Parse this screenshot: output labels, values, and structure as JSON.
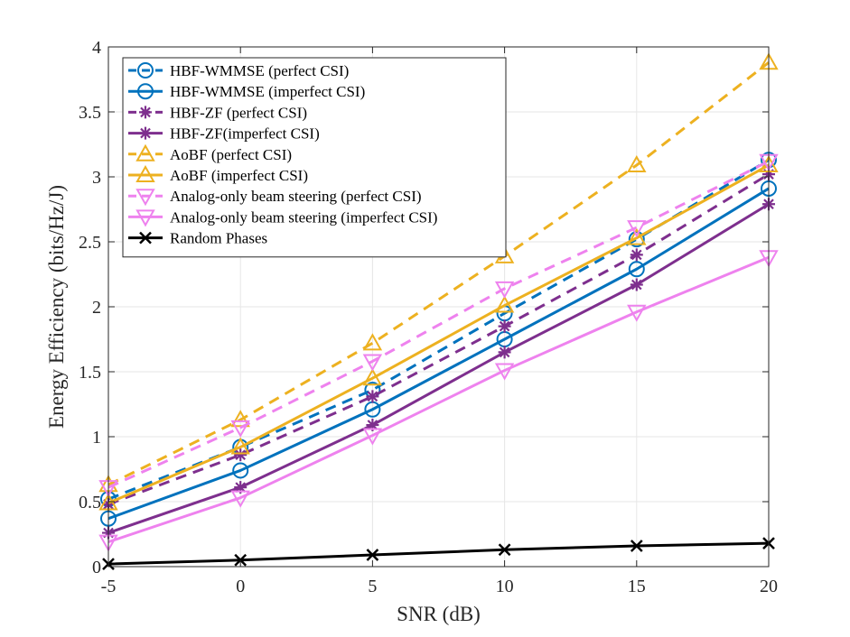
{
  "chart_data": {
    "type": "line",
    "title": "",
    "xlabel": "SNR (dB)",
    "ylabel": "Energy Efficiency (bits/Hz/J)",
    "x": [
      -5,
      0,
      5,
      10,
      15,
      20
    ],
    "xlim": [
      -5,
      20
    ],
    "ylim": [
      0,
      4
    ],
    "xticks": [
      -5,
      0,
      5,
      10,
      15,
      20
    ],
    "yticks": [
      0,
      0.5,
      1,
      1.5,
      2,
      2.5,
      3,
      3.5,
      4
    ],
    "xtick_labels": [
      "-5",
      "0",
      "5",
      "10",
      "15",
      "20"
    ],
    "ytick_labels": [
      "0",
      "0.5",
      "1",
      "1.5",
      "2",
      "2.5",
      "3",
      "3.5",
      "4"
    ],
    "grid": true,
    "legend_position": "top-left",
    "series": [
      {
        "name": "HBF-WMMSE (perfect CSI)",
        "values": [
          0.52,
          0.92,
          1.36,
          1.95,
          2.52,
          3.13
        ],
        "color": "#0072BD",
        "dash": "dashed",
        "marker": "circle"
      },
      {
        "name": "HBF-WMMSE (imperfect CSI)",
        "values": [
          0.37,
          0.74,
          1.21,
          1.75,
          2.29,
          2.91
        ],
        "color": "#0072BD",
        "dash": "solid",
        "marker": "circle"
      },
      {
        "name": "HBF-ZF (perfect CSI)",
        "values": [
          0.48,
          0.86,
          1.31,
          1.85,
          2.4,
          3.02
        ],
        "color": "#7E2F8E",
        "dash": "dashed",
        "marker": "asterisk"
      },
      {
        "name": "HBF-ZF(imperfect CSI)",
        "values": [
          0.26,
          0.61,
          1.09,
          1.65,
          2.17,
          2.79
        ],
        "color": "#7E2F8E",
        "dash": "solid",
        "marker": "asterisk"
      },
      {
        "name": "AoBF (perfect CSI)",
        "values": [
          0.63,
          1.13,
          1.72,
          2.39,
          3.09,
          3.88
        ],
        "color": "#EDB120",
        "dash": "dashed",
        "marker": "triangle-up"
      },
      {
        "name": "AoBF (imperfect CSI)",
        "values": [
          0.49,
          0.92,
          1.45,
          2.01,
          2.53,
          3.09
        ],
        "color": "#EDB120",
        "dash": "solid",
        "marker": "triangle-up"
      },
      {
        "name": "Analog-only beam steering (perfect CSI)",
        "values": [
          0.61,
          1.07,
          1.58,
          2.14,
          2.61,
          3.12
        ],
        "color": "#EE82EE",
        "dash": "dashed",
        "marker": "triangle-down"
      },
      {
        "name": "Analog-only beam steering (imperfect CSI)",
        "values": [
          0.19,
          0.53,
          1.01,
          1.51,
          1.96,
          2.38
        ],
        "color": "#EE82EE",
        "dash": "solid",
        "marker": "triangle-down"
      },
      {
        "name": "Random Phases",
        "values": [
          0.02,
          0.05,
          0.09,
          0.13,
          0.16,
          0.18
        ],
        "color": "#000000",
        "dash": "solid",
        "marker": "x"
      }
    ]
  }
}
